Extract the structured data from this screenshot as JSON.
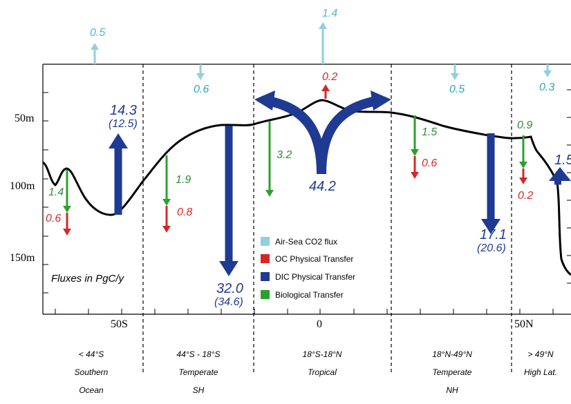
{
  "colors": {
    "air_sea": "#8fd0de",
    "oc": "#d62728",
    "dic": "#1f3a93",
    "bio": "#2ca02c",
    "grid": "#000000"
  },
  "axes": {
    "y_labels": [
      "50m",
      "100m",
      "150m"
    ],
    "x_labels": [
      "50S",
      "0",
      "50N"
    ]
  },
  "fluxes_caption": "Fluxes in PgC/y",
  "regions": [
    {
      "line1": "< 44°S",
      "line2": "Southern",
      "line3": "Ocean"
    },
    {
      "line1": "44°S - 18°S",
      "line2": "Temperate",
      "line3": "SH"
    },
    {
      "line1": "18°S-18°N",
      "line2": "Tropical",
      "line3": ""
    },
    {
      "line1": "18°N-49°N",
      "line2": "Temperate",
      "line3": "NH"
    },
    {
      "line1": "> 49°N",
      "line2": "High Lat.",
      "line3": ""
    }
  ],
  "air_sea": [
    "0.5",
    "0.6",
    "1.4",
    "0.5",
    "0.3"
  ],
  "oc": [
    "0.6",
    "0.8",
    "0.2",
    "0.6",
    "0.2"
  ],
  "bio": [
    "1.4",
    "1.9",
    "3.2",
    "1.5",
    "0.9"
  ],
  "dic": {
    "southern_main": "14.3",
    "southern_paren": "(12.5)",
    "temperate_sh_main": "32.0",
    "temperate_sh_paren": "(34.6)",
    "tropical": "44.2",
    "temperate_nh_main": "17.1",
    "temperate_nh_paren": "(20.6)",
    "high_lat": "1.5"
  },
  "legend": [
    {
      "label": "Air-Sea CO2 flux",
      "color_key": "air_sea"
    },
    {
      "label": "OC Physical Transfer",
      "color_key": "oc"
    },
    {
      "label": "DIC Physical Transfer",
      "color_key": "dic"
    },
    {
      "label": "Biological Transfer",
      "color_key": "bio"
    }
  ]
}
